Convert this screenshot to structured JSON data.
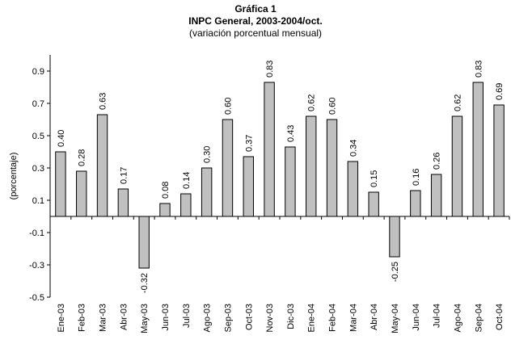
{
  "chart_data": {
    "type": "bar",
    "title": "Gráfica 1",
    "subtitle": "INPC General, 2003-2004/oct.",
    "subtitle2": "(variación porcentual mensual)",
    "xlabel": "",
    "ylabel": "(porcentaje)",
    "ylim": [
      -0.5,
      1.0
    ],
    "yticks": [
      "0.9",
      "0.7",
      "0.5",
      "0.3",
      "0.1",
      "-0.1",
      "-0.3",
      "-0.5"
    ],
    "categories": [
      "Ene-03",
      "Feb-03",
      "Mar-03",
      "Abr-03",
      "May-03",
      "Jun-03",
      "Jul-03",
      "Ago-03",
      "Sep-03",
      "Oct-03",
      "Nov-03",
      "Dic-03",
      "Ene-04",
      "Feb-04",
      "Mar-04",
      "Abr-04",
      "May-04",
      "Jun-04",
      "Jul-04",
      "Ago-04",
      "Sep-04",
      "Oct-04"
    ],
    "values": [
      0.4,
      0.28,
      0.63,
      0.17,
      -0.32,
      0.08,
      0.14,
      0.3,
      0.6,
      0.37,
      0.83,
      0.43,
      0.62,
      0.6,
      0.34,
      0.15,
      -0.25,
      0.16,
      0.26,
      0.62,
      0.83,
      0.69
    ],
    "data_labels": [
      "0.40",
      "0.28",
      "0.63",
      "0.17",
      "-0.32",
      "0.08",
      "0.14",
      "0.30",
      "0.60",
      "0.37",
      "0.83",
      "0.43",
      "0.62",
      "0.60",
      "0.34",
      "0.15",
      "-0.25",
      "0.16",
      "0.26",
      "0.62",
      "0.83",
      "0.69"
    ],
    "bar_color": "#c0c0c0",
    "grid": false,
    "legend": "none"
  }
}
